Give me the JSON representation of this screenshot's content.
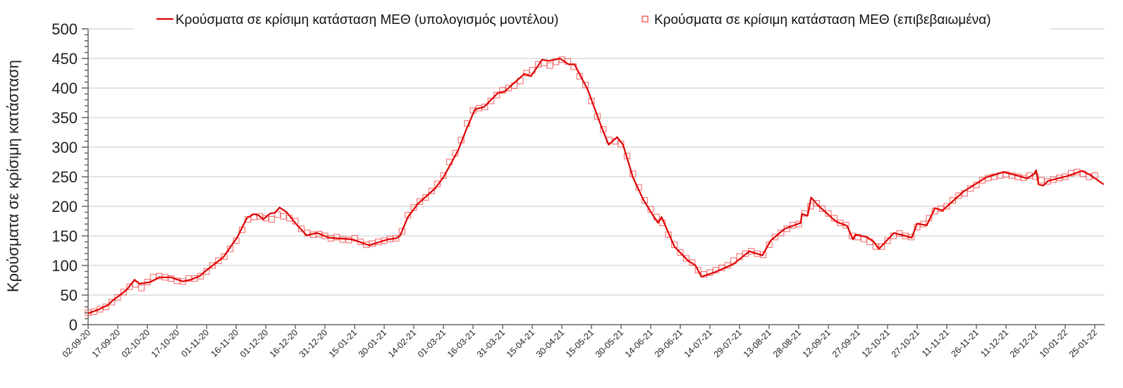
{
  "chart_data": {
    "type": "line",
    "title": "",
    "xlabel": "",
    "ylabel": "Κρούσματα σε κρίσιμη κατάσταση",
    "ylim": [
      0,
      500
    ],
    "yticks": [
      0,
      50,
      100,
      150,
      200,
      250,
      300,
      350,
      400,
      450,
      500
    ],
    "x_units": "days since 02-09-20",
    "xlim": [
      0,
      515
    ],
    "xtick_step_days": 15,
    "xtick_labels": [
      "02-09-20",
      "17-09-20",
      "02-10-20",
      "17-10-20",
      "01-11-20",
      "16-11-20",
      "01-12-20",
      "16-12-20",
      "31-12-20",
      "15-01-21",
      "30-01-21",
      "14-02-21",
      "01-03-21",
      "16-03-21",
      "31-03-21",
      "15-04-21",
      "30-04-21",
      "15-05-21",
      "30-05-21",
      "14-06-21",
      "29-06-21",
      "14-07-21",
      "29-07-21",
      "13-08-21",
      "28-08-21",
      "12-09-21",
      "27-09-21",
      "12-10-21",
      "27-10-21",
      "11-11-21",
      "26-11-21",
      "11-12-21",
      "26-12-21",
      "10-01-22",
      "25-01-22"
    ],
    "grid": true,
    "legend_position": "top",
    "colors": {
      "model": "#e00000",
      "confirmed": "#f04040"
    },
    "series": [
      {
        "name": "Κρούσματα σε κρίσιμη κατάσταση ΜΕΘ (υπολογισμός μοντέλου)",
        "kind": "line",
        "points": [
          [
            0,
            19
          ],
          [
            5,
            25
          ],
          [
            10,
            33
          ],
          [
            12.5,
            41
          ],
          [
            15,
            47
          ],
          [
            19.6,
            59
          ],
          [
            23.5,
            76
          ],
          [
            26,
            69
          ],
          [
            31.6,
            72
          ],
          [
            36,
            80
          ],
          [
            42,
            80
          ],
          [
            48,
            73
          ],
          [
            52,
            76
          ],
          [
            56.5,
            82
          ],
          [
            60,
            92
          ],
          [
            68.5,
            114
          ],
          [
            75.6,
            148
          ],
          [
            80.4,
            180
          ],
          [
            84,
            187
          ],
          [
            86.3,
            185
          ],
          [
            88.7,
            178
          ],
          [
            92.3,
            188
          ],
          [
            94.6,
            189
          ],
          [
            97,
            198
          ],
          [
            100.6,
            190
          ],
          [
            105.4,
            170
          ],
          [
            110.7,
            151
          ],
          [
            116,
            155
          ],
          [
            122,
            147
          ],
          [
            134,
            144
          ],
          [
            142.3,
            134
          ],
          [
            151.8,
            144
          ],
          [
            156,
            146
          ],
          [
            158,
            150
          ],
          [
            162,
            182
          ],
          [
            167,
            204
          ],
          [
            176,
            231
          ],
          [
            180,
            249
          ],
          [
            187.5,
            295
          ],
          [
            191.7,
            331
          ],
          [
            196,
            364
          ],
          [
            200.6,
            368
          ],
          [
            207.7,
            392
          ],
          [
            211,
            394
          ],
          [
            221,
            424
          ],
          [
            224.4,
            420
          ],
          [
            230,
            448
          ],
          [
            233.5,
            446
          ],
          [
            239,
            450
          ],
          [
            243.5,
            440
          ],
          [
            246.4,
            440
          ],
          [
            253,
            398
          ],
          [
            260,
            335
          ],
          [
            263.7,
            304
          ],
          [
            268,
            317
          ],
          [
            271,
            304
          ],
          [
            276,
            249
          ],
          [
            281,
            213
          ],
          [
            286.3,
            184
          ],
          [
            288.7,
            172
          ],
          [
            290.5,
            182
          ],
          [
            297,
            132
          ],
          [
            304,
            108
          ],
          [
            307.7,
            100
          ],
          [
            310.7,
            81
          ],
          [
            317,
            88
          ],
          [
            326.8,
            102
          ],
          [
            335,
            124
          ],
          [
            341.6,
            117
          ],
          [
            345.8,
            142
          ],
          [
            352.9,
            162
          ],
          [
            361,
            172
          ],
          [
            361.6,
            187
          ],
          [
            364.5,
            184
          ],
          [
            366.3,
            215
          ],
          [
            369.6,
            202
          ],
          [
            379,
            174
          ],
          [
            384.5,
            167
          ],
          [
            387.5,
            144
          ],
          [
            388.7,
            152
          ],
          [
            394.6,
            148
          ],
          [
            398,
            140
          ],
          [
            400.6,
            128
          ],
          [
            408.3,
            155
          ],
          [
            417.3,
            147
          ],
          [
            420,
            171
          ],
          [
            424.9,
            168
          ],
          [
            429,
            197
          ],
          [
            432.8,
            193
          ],
          [
            443.5,
            225
          ],
          [
            455,
            249
          ],
          [
            463.7,
            258
          ],
          [
            472,
            251
          ],
          [
            475.6,
            247
          ],
          [
            479.4,
            255
          ],
          [
            480.3,
            261
          ],
          [
            481.5,
            237
          ],
          [
            483.9,
            235
          ],
          [
            486.3,
            243
          ],
          [
            495.9,
            251
          ],
          [
            503.6,
            260
          ],
          [
            507.7,
            253
          ],
          [
            514.5,
            237
          ]
        ]
      },
      {
        "name": "Κρούσματα σε κρίσιμη κατάσταση ΜΕΘ (επιβεβαιωμένα)",
        "kind": "scatter",
        "x_start": 0,
        "x_step": 3,
        "values": [
          20,
          22,
          26,
          30,
          38,
          46,
          55,
          64,
          68,
          62,
          72,
          80,
          82,
          80,
          78,
          74,
          73,
          78,
          78,
          82,
          90,
          100,
          108,
          115,
          128,
          142,
          160,
          178,
          182,
          183,
          180,
          178,
          186,
          183,
          180,
          175,
          162,
          155,
          152,
          153,
          150,
          146,
          148,
          144,
          143,
          146,
          140,
          135,
          137,
          140,
          142,
          145,
          146,
          158,
          185,
          198,
          208,
          215,
          226,
          238,
          252,
          275,
          290,
          312,
          340,
          362,
          366,
          368,
          378,
          388,
          396,
          400,
          404,
          412,
          425,
          430,
          440,
          442,
          438,
          444,
          448,
          445,
          436,
          420,
          405,
          378,
          352,
          330,
          312,
          310,
          305,
          285,
          255,
          232,
          210,
          195,
          182,
          172,
          152,
          135,
          122,
          112,
          105,
          92,
          85,
          88,
          92,
          96,
          100,
          108,
          115,
          120,
          124,
          120,
          118,
          135,
          148,
          155,
          162,
          168,
          170,
          188,
          200,
          205,
          196,
          188,
          180,
          172,
          168,
          150,
          148,
          145,
          140,
          132,
          132,
          142,
          150,
          154,
          150,
          148,
          165,
          170,
          180,
          192,
          196,
          200,
          210,
          218,
          222,
          230,
          236,
          244,
          248,
          250,
          252,
          254,
          252,
          250,
          248,
          252,
          250,
          244,
          242,
          245,
          248,
          250,
          256,
          258,
          255,
          250,
          252
        ]
      }
    ]
  }
}
